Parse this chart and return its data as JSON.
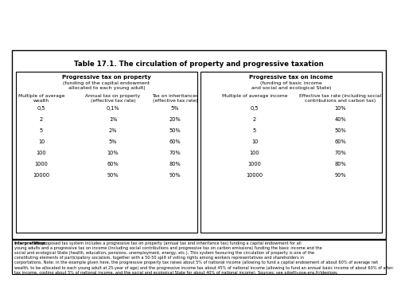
{
  "title": "Table 17.1. The circulation of property and progressive taxation",
  "left_header_bold": "Progressive tax on property",
  "left_header_normal": " (funding of the capital endowment\nallocated to each young adult)",
  "left_col1_header": "Multiple of average\nwealth",
  "left_col2_header": "Annual tax on property\n(effective tax rate)",
  "left_col3_header": "Tax on inheritances\n(effective tax rate)",
  "left_rows": [
    [
      "0,5",
      "0,1%",
      "5%"
    ],
    [
      "2",
      "1%",
      "20%"
    ],
    [
      "5",
      "2%",
      "50%"
    ],
    [
      "10",
      "5%",
      "60%"
    ],
    [
      "100",
      "10%",
      "70%"
    ],
    [
      "1000",
      "60%",
      "80%"
    ],
    [
      "10000",
      "90%",
      "90%"
    ]
  ],
  "right_header_bold": "Progressive tax on income",
  "right_header_normal": " (funding of basic income\nand social and ecological State)",
  "right_col1_header": "Multiple of average income",
  "right_col2_header": "Effective tax rate (including social\ncontributions and carbon tax)",
  "right_rows": [
    [
      "0,5",
      "10%"
    ],
    [
      "2",
      "40%"
    ],
    [
      "5",
      "50%"
    ],
    [
      "10",
      "60%"
    ],
    [
      "100",
      "70%"
    ],
    [
      "1000",
      "80%"
    ],
    [
      "10000",
      "90%"
    ]
  ],
  "interp_line1": "Interpretation. The proposed tax system includes a progressive tax on property (annual tax and inheritance tax) funding a capital endowment for all",
  "interp_line2": "young adults and a progressive tax on income (including social contributions and progressive tax on carbon emissions) funding the basic income and the",
  "interp_line3": "social and ecological State (health, education, pensions, unemployment, energy, etc.). This system favouring the circulation of property is one of the",
  "interp_line4": "constituting elements of participatory socialism, together with a 50-50 split of voting rights among workers representatives and shareholders in",
  "interp_line5": "corportations. Note: in the example given here, the progressive property tax raises about 5% of national income (allowing to fund a capital endowment of about 60% of average net",
  "interp_line6": "wealth, to be allocated to each young adult at 25-year of age) and the progressive income tax about 45% of national income (allowing to fund an annual basic income of about 60% of after-",
  "interp_line7": "tax income, costing about 5% of national income, and the social and ecological State for about 40% of national income). Sources: see piketty.pse.ens.fr/ideology.",
  "bg_color": "#ffffff",
  "border_color": "#000000",
  "text_color": "#000000"
}
